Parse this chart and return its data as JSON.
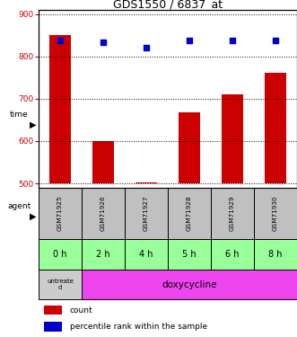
{
  "title": "GDS1550 / 6837_at",
  "samples": [
    "GSM71925",
    "GSM71926",
    "GSM71927",
    "GSM71928",
    "GSM71929",
    "GSM71930"
  ],
  "time_labels": [
    "0 h",
    "2 h",
    "4 h",
    "5 h",
    "6 h",
    "8 h"
  ],
  "agent_labels": [
    "untreated",
    "doxycycline"
  ],
  "count_values": [
    850,
    600,
    502,
    668,
    710,
    762
  ],
  "percentile_values": [
    83,
    82,
    79,
    83,
    83,
    83
  ],
  "ylim_left": [
    490,
    910
  ],
  "ylim_right": [
    0,
    100
  ],
  "yticks_left": [
    500,
    600,
    700,
    800,
    900
  ],
  "yticks_right": [
    0,
    25,
    50,
    75,
    100
  ],
  "bar_color": "#cc0000",
  "dot_color": "#0000cc",
  "left_tick_color": "#cc0000",
  "right_tick_color": "#0000cc",
  "grid_color": "#000000",
  "sample_bg_color": "#c0c0c0",
  "time_bg_color": "#99ff99",
  "agent_untreated_color": "#cccccc",
  "agent_doxy_color": "#ee44ee",
  "bar_bottom": 500,
  "bar_width": 0.5
}
